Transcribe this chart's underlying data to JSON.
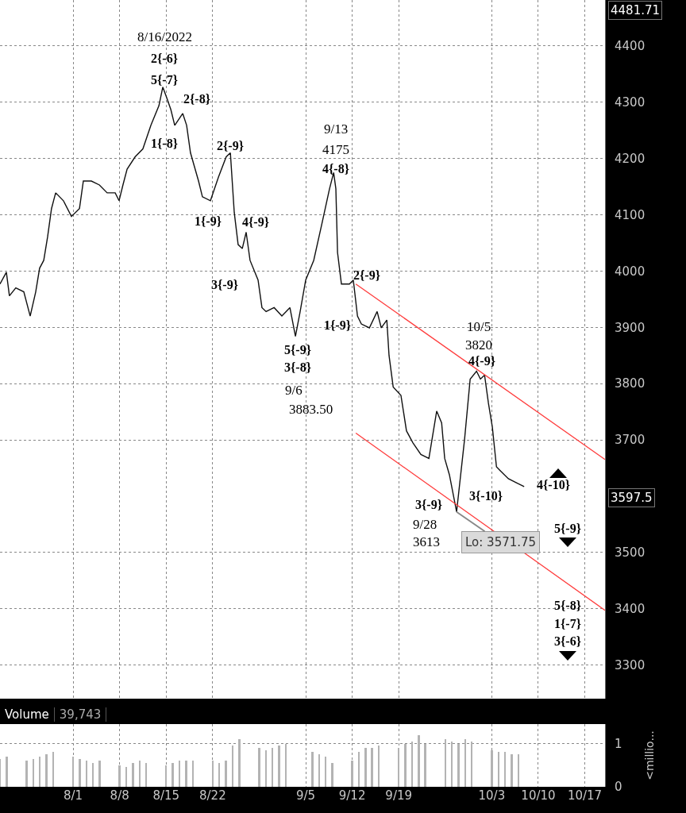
{
  "chart_data": [
    {
      "type": "line",
      "xlim": [
        "2022-07-21T00:00",
        "2022-10-20T01:00"
      ],
      "xticks": [
        {
          "value": "2022-08-01",
          "label": null
        },
        {
          "value": "2022-08-08",
          "label": null
        },
        {
          "value": "2022-08-15",
          "label": null
        },
        {
          "value": "2022-08-22",
          "label": null
        },
        {
          "value": "2022-09-05",
          "label": null
        },
        {
          "value": "2022-09-12",
          "label": null
        },
        {
          "value": "2022-09-19",
          "label": null
        },
        {
          "value": "2022-10-03",
          "label": null
        },
        {
          "value": "2022-10-10",
          "label": null
        },
        {
          "value": "2022-10-17",
          "label": null
        }
      ],
      "ylim": [
        3240,
        4481.71
      ],
      "yticks": [
        3300,
        3400,
        3500,
        3700,
        3800,
        3900,
        4000,
        4100,
        4200,
        4300,
        4400
      ],
      "grid": true,
      "tick_labels": "y",
      "series": [
        {
          "color": "#111111",
          "x": [
            "2022-07-21T00:00",
            "2022-07-21T23:00",
            "2022-07-22T10:00",
            "2022-07-23T09:00",
            "2022-07-24T14:00",
            "2022-07-25T13:00",
            "2022-07-26T09:00",
            "2022-07-26T23:00",
            "2022-07-27T14:00",
            "2022-07-28T04:00",
            "2022-07-28T18:00",
            "2022-07-29T09:00",
            "2022-07-30T13:00",
            "2022-07-31T18:00",
            "2022-08-01T23:00",
            "2022-08-02T13:00",
            "2022-08-03T18:00",
            "2022-08-04T23:00",
            "2022-08-06T03:00",
            "2022-08-07T08:00",
            "2022-08-07T22:00",
            "2022-08-08T12:00",
            "2022-08-09T03:00",
            "2022-08-10T08:00",
            "2022-08-11T12:00",
            "2022-08-12T17:00",
            "2022-08-13T22:00",
            "2022-08-14T12:00",
            "2022-08-15T02:00",
            "2022-08-15T17:00",
            "2022-08-16T07:00",
            "2022-08-17T12:00",
            "2022-08-18T02:00",
            "2022-08-18T16:00",
            "2022-08-19T21:00",
            "2022-08-20T11:00",
            "2022-08-21T16:00",
            "2022-08-22T21:00",
            "2022-08-24T01:00",
            "2022-08-24T16:00",
            "2022-08-25T06:00",
            "2022-08-25T20:00",
            "2022-08-26T11:00",
            "2022-08-27T01:00",
            "2022-08-27T15:00",
            "2022-08-28T20:00",
            "2022-08-29T10:00",
            "2022-08-30T01:00",
            "2022-08-31T06:00",
            "2022-09-01T10:00",
            "2022-09-02T15:00",
            "2022-09-03T11:00",
            "2022-09-04T04:00",
            "2022-09-05T00:00",
            "2022-09-06T05:00",
            "2022-09-07T10:00",
            "2022-09-08T14:00",
            "2022-09-09T05:00",
            "2022-09-09T13:00",
            "2022-09-09T19:00",
            "2022-09-10T09:00",
            "2022-09-11T14:00",
            "2022-09-12T04:00",
            "2022-09-12T19:00",
            "2022-09-13T09:00",
            "2022-09-14T14:00",
            "2022-09-15T18:00",
            "2022-09-16T09:00",
            "2022-09-17T05:00",
            "2022-09-17T13:00",
            "2022-09-18T04:00",
            "2022-09-19T08:00",
            "2022-09-20T04:00",
            "2022-09-21T03:00",
            "2022-09-22T08:00",
            "2022-09-23T13:00",
            "2022-09-24T17:00",
            "2022-09-25T11:00",
            "2022-09-25T22:00",
            "2022-09-26T15:00",
            "2022-09-27T17:00",
            "2022-09-28T22:00",
            "2022-09-29T18:00",
            "2022-09-30T17:00",
            "2022-10-01T07:00",
            "2022-10-01T22:00",
            "2022-10-02T12:00",
            "2022-10-03T02:00",
            "2022-10-03T17:00",
            "2022-10-04T07:00",
            "2022-10-05T12:00",
            "2022-10-06T16:00",
            "2022-10-07T21:00"
          ],
          "values": [
            3977,
            3998,
            3956,
            3970,
            3963,
            3920,
            3963,
            4005,
            4019,
            4061,
            4111,
            4139,
            4125,
            4097,
            4111,
            4160,
            4160,
            4153,
            4139,
            4139,
            4125,
            4153,
            4181,
            4203,
            4217,
            4259,
            4294,
            4327,
            4308,
            4287,
            4259,
            4280,
            4259,
            4210,
            4160,
            4132,
            4125,
            4167,
            4203,
            4210,
            4104,
            4047,
            4040,
            4069,
            4019,
            3984,
            3935,
            3928,
            3935,
            3920,
            3935,
            3884,
            3928,
            3984,
            4019,
            4083,
            4146,
            4175,
            4146,
            4033,
            3977,
            3977,
            3984,
            3920,
            3906,
            3899,
            3928,
            3899,
            3913,
            3850,
            3794,
            3779,
            3716,
            3695,
            3674,
            3667,
            3751,
            3730,
            3667,
            3638,
            3572,
            3702,
            3808,
            3822,
            3808,
            3815,
            3765,
            3723,
            3652,
            3645,
            3631,
            3624,
            3617
          ]
        },
        {
          "type": "line",
          "color": "#ff3b3b",
          "x": [
            "2022-09-12T13:00",
            "2022-10-20T01:00"
          ],
          "values": [
            3977,
            3665
          ]
        },
        {
          "type": "line",
          "color": "#ff3b3b",
          "x": [
            "2022-09-12T13:00",
            "2022-10-20T01:00"
          ],
          "values": [
            3712,
            3397
          ]
        }
      ],
      "annotations": [
        "8/16/2022",
        "2{-6}",
        "5{-7}",
        "2{-8}",
        "1{-8}",
        "2{-9}",
        "1{-9}",
        "4{-9}",
        "3{-9}",
        "9/13",
        "4175",
        "4{-8}",
        "5{-9}",
        "3{-8}",
        "9/6",
        "3883.50",
        "2{-9}",
        "1{-9}",
        "10/5",
        "3820",
        "4{-9}",
        "3{-9}",
        "9/28",
        "3613",
        "3{-10}",
        "4{-10}",
        "5{-9}",
        "5{-8}",
        "1{-7}",
        "3{-6}",
        {
          "text": "Lo: 3571.75",
          "x": "2022-09-27T17:00",
          "y": 3572
        },
        "4481.71",
        "3597.5"
      ]
    },
    {
      "type": "bar",
      "title": "Volume",
      "subtitle": "39,743",
      "ylabel": "<millio...",
      "color": "#b3b3b3",
      "xlim": [
        "2022-07-21T00:00",
        "2022-10-20T01:00"
      ],
      "xticks": [
        {
          "value": "2022-08-01",
          "label": "8/1"
        },
        {
          "value": "2022-08-08",
          "label": "8/8"
        },
        {
          "value": "2022-08-15",
          "label": "8/15"
        },
        {
          "value": "2022-08-22",
          "label": "8/22"
        },
        {
          "value": "2022-09-05",
          "label": "9/5"
        },
        {
          "value": "2022-09-12",
          "label": "9/12"
        },
        {
          "value": "2022-09-19",
          "label": "9/19"
        },
        {
          "value": "2022-10-03",
          "label": "10/3"
        },
        {
          "value": "2022-10-10",
          "label": "10/10"
        },
        {
          "value": "2022-10-17",
          "label": "10/17"
        }
      ],
      "ylim": [
        0,
        1.45
      ],
      "yticks": [
        0,
        1
      ],
      "grid": true,
      "x": [
        "2022-07-21",
        "2022-07-22",
        "2022-07-25",
        "2022-07-26",
        "2022-07-27",
        "2022-07-28",
        "2022-07-29",
        "2022-08-01",
        "2022-08-02",
        "2022-08-03",
        "2022-08-04",
        "2022-08-05",
        "2022-08-08",
        "2022-08-09",
        "2022-08-10",
        "2022-08-11",
        "2022-08-12",
        "2022-08-15",
        "2022-08-16",
        "2022-08-17",
        "2022-08-18",
        "2022-08-19",
        "2022-08-22",
        "2022-08-23",
        "2022-08-24",
        "2022-08-25",
        "2022-08-26",
        "2022-08-29",
        "2022-08-30",
        "2022-08-31",
        "2022-09-01",
        "2022-09-02",
        "2022-09-06",
        "2022-09-07",
        "2022-09-08",
        "2022-09-09",
        "2022-09-12",
        "2022-09-13",
        "2022-09-14",
        "2022-09-15",
        "2022-09-16",
        "2022-09-19",
        "2022-09-20",
        "2022-09-21",
        "2022-09-22",
        "2022-09-23",
        "2022-09-26",
        "2022-09-27",
        "2022-09-28",
        "2022-09-29",
        "2022-09-30",
        "2022-10-03",
        "2022-10-04",
        "2022-10-05",
        "2022-10-06",
        "2022-10-07"
      ],
      "values": [
        0.65,
        0.7,
        0.6,
        0.65,
        0.7,
        0.75,
        0.8,
        0.7,
        0.65,
        0.6,
        0.55,
        0.6,
        0.5,
        0.45,
        0.55,
        0.6,
        0.55,
        0.5,
        0.55,
        0.6,
        0.6,
        0.6,
        0.6,
        0.55,
        0.6,
        0.95,
        1.1,
        0.9,
        0.85,
        0.9,
        0.95,
        1.0,
        0.8,
        0.75,
        0.7,
        0.55,
        0.6,
        0.8,
        0.9,
        0.9,
        0.95,
        0.9,
        1.0,
        1.05,
        1.2,
        1.0,
        1.1,
        1.05,
        1.0,
        1.1,
        1.05,
        0.85,
        0.8,
        0.8,
        0.75,
        0.75
      ]
    }
  ]
}
